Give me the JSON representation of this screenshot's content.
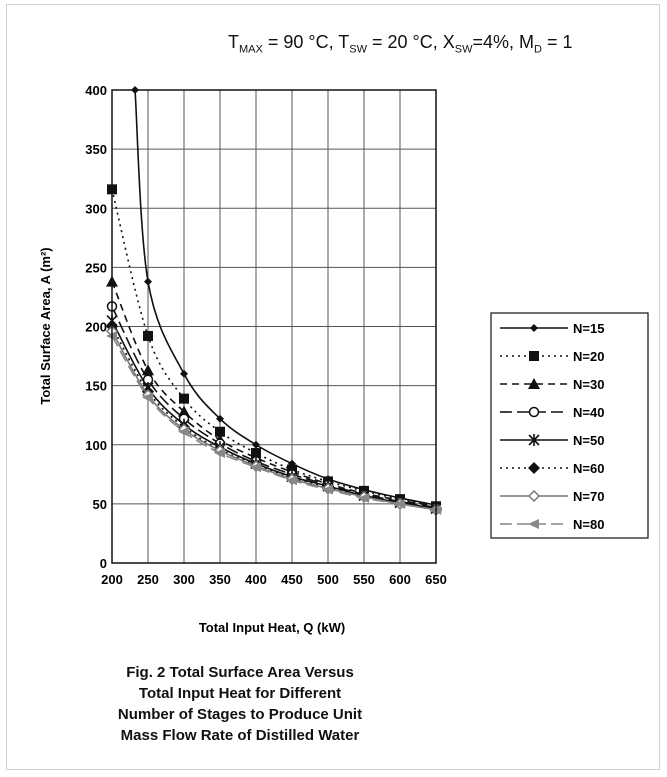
{
  "params": {
    "t_max_sym": "T",
    "t_max_sub": "MAX",
    "t_max_val": " = 90 °C, ",
    "t_sw_sym": "T",
    "t_sw_sub": "SW",
    "t_sw_val": " = 20 °C, ",
    "x_sw_sym": "X",
    "x_sw_sub": "SW",
    "x_sw_val": "=4%, ",
    "m_sym": "M",
    "m_sub": "D",
    "m_val": " = 1"
  },
  "caption": {
    "line1": "Fig. 2 Total Surface Area Versus",
    "line2": "Total Input Heat for Different",
    "line3": "Number of Stages to Produce Unit",
    "line4": "Mass Flow Rate of Distilled Water"
  },
  "chart_data": {
    "type": "line",
    "xlabel": "Total Input Heat, Q (kW)",
    "ylabel": "Total Surface Area, A (m²)",
    "xlim": [
      200,
      650
    ],
    "ylim": [
      0,
      400
    ],
    "x_ticks": [
      200,
      250,
      300,
      350,
      400,
      450,
      500,
      550,
      600,
      650
    ],
    "y_ticks": [
      0,
      50,
      100,
      150,
      200,
      250,
      300,
      350,
      400
    ],
    "grid": true,
    "legend_position": "right",
    "series": [
      {
        "name": "N=15",
        "marker": "diamond-small",
        "dash": "",
        "color": "#111111",
        "x": [
          232,
          250,
          300,
          350,
          400,
          450,
          500,
          550,
          600,
          650
        ],
        "y": [
          400,
          238,
          160,
          122,
          100,
          84,
          71,
          62,
          55,
          49
        ]
      },
      {
        "name": "N=20",
        "marker": "square",
        "dash": "2,4",
        "color": "#111111",
        "x": [
          200,
          250,
          300,
          350,
          400,
          450,
          500,
          550,
          600,
          650
        ],
        "y": [
          316,
          192,
          139,
          111,
          93,
          79,
          69,
          61,
          54,
          48
        ]
      },
      {
        "name": "N=30",
        "marker": "triangle",
        "dash": "7,5",
        "color": "#111111",
        "x": [
          200,
          250,
          300,
          350,
          400,
          450,
          500,
          550,
          600,
          650
        ],
        "y": [
          238,
          163,
          128,
          104,
          89,
          77,
          67,
          59,
          53,
          48
        ]
      },
      {
        "name": "N=40",
        "marker": "circle-open",
        "dash": "12,5",
        "color": "#111111",
        "x": [
          200,
          250,
          300,
          350,
          400,
          450,
          500,
          550,
          600,
          650
        ],
        "y": [
          217,
          155,
          122,
          101,
          86,
          75,
          66,
          58,
          52,
          47
        ]
      },
      {
        "name": "N=50",
        "marker": "star",
        "dash": "",
        "color": "#111111",
        "x": [
          200,
          250,
          300,
          350,
          400,
          450,
          500,
          550,
          600,
          650
        ],
        "y": [
          205,
          148,
          117,
          98,
          84,
          73,
          65,
          57,
          51,
          46
        ]
      },
      {
        "name": "N=60",
        "marker": "diamond",
        "dash": "2,4",
        "color": "#111111",
        "x": [
          200,
          250,
          300,
          350,
          400,
          450,
          500,
          550,
          600,
          650
        ],
        "y": [
          200,
          145,
          115,
          96,
          83,
          72,
          64,
          57,
          51,
          46
        ]
      },
      {
        "name": "N=70",
        "marker": "diamond-open",
        "dash": "",
        "color": "#777777",
        "x": [
          200,
          250,
          300,
          350,
          400,
          450,
          500,
          550,
          600,
          650
        ],
        "y": [
          196,
          142,
          113,
          95,
          82,
          71,
          63,
          56,
          50,
          45
        ]
      },
      {
        "name": "N=80",
        "marker": "triangle-left",
        "dash": "12,5",
        "color": "#888888",
        "x": [
          200,
          250,
          300,
          350,
          400,
          450,
          500,
          550,
          600,
          650
        ],
        "y": [
          192,
          140,
          111,
          93,
          81,
          70,
          62,
          55,
          50,
          45
        ]
      }
    ]
  }
}
